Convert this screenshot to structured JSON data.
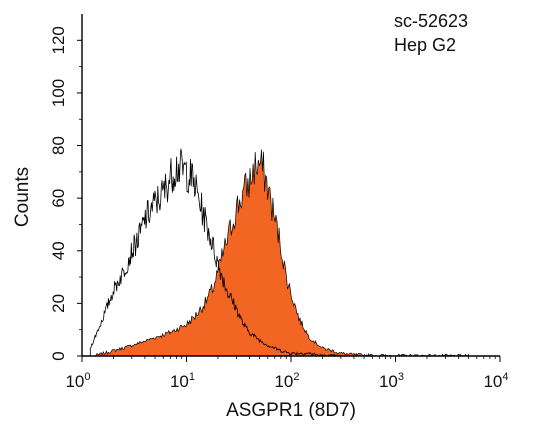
{
  "chart_data": {
    "type": "area",
    "annotation_lines": [
      "sc-52623",
      "Hep G2"
    ],
    "xlabel": "ASGPR1 (8D7)",
    "ylabel": "Counts",
    "x_scale": "log",
    "xlim": [
      1,
      10000
    ],
    "ylim": [
      0,
      130
    ],
    "x_ticks": [
      {
        "value": 1,
        "base": "10",
        "exp": "0"
      },
      {
        "value": 10,
        "base": "10",
        "exp": "1"
      },
      {
        "value": 100,
        "base": "10",
        "exp": "2"
      },
      {
        "value": 1000,
        "base": "10",
        "exp": "3"
      },
      {
        "value": 10000,
        "base": "10",
        "exp": "4"
      }
    ],
    "y_ticks": [
      0,
      20,
      40,
      60,
      80,
      100,
      120
    ],
    "grid": false,
    "series": [
      {
        "style": "outline",
        "color": "#000000",
        "x": [
          1.2,
          1.5,
          2,
          2.5,
          3,
          3.5,
          4,
          5,
          6,
          7,
          8,
          9,
          10,
          11,
          12,
          13,
          15,
          17,
          20,
          23,
          25,
          30,
          35,
          40,
          50,
          60,
          70,
          80,
          100,
          150,
          200,
          300
        ],
        "y": [
          3,
          12,
          25,
          32,
          40,
          45,
          52,
          58,
          62,
          68,
          72,
          71,
          70,
          68,
          65,
          60,
          52,
          45,
          35,
          28,
          24,
          18,
          12,
          9,
          6,
          4,
          3,
          2,
          1,
          1,
          0,
          0
        ]
      },
      {
        "style": "filled",
        "color": "#f26522",
        "x": [
          1.3,
          2,
          3,
          5,
          7,
          10,
          12,
          15,
          18,
          20,
          22,
          25,
          28,
          30,
          35,
          40,
          45,
          50,
          55,
          60,
          70,
          80,
          90,
          100,
          120,
          150,
          200,
          250,
          300,
          400,
          500,
          700,
          1000,
          2000,
          5000
        ],
        "y": [
          0,
          2,
          4,
          7,
          9,
          12,
          15,
          20,
          26,
          32,
          38,
          45,
          52,
          56,
          62,
          66,
          72,
          73,
          70,
          64,
          52,
          42,
          30,
          24,
          14,
          7,
          3,
          2,
          1,
          0.5,
          0.3,
          0.2,
          0.1,
          0.1,
          0
        ]
      }
    ]
  }
}
